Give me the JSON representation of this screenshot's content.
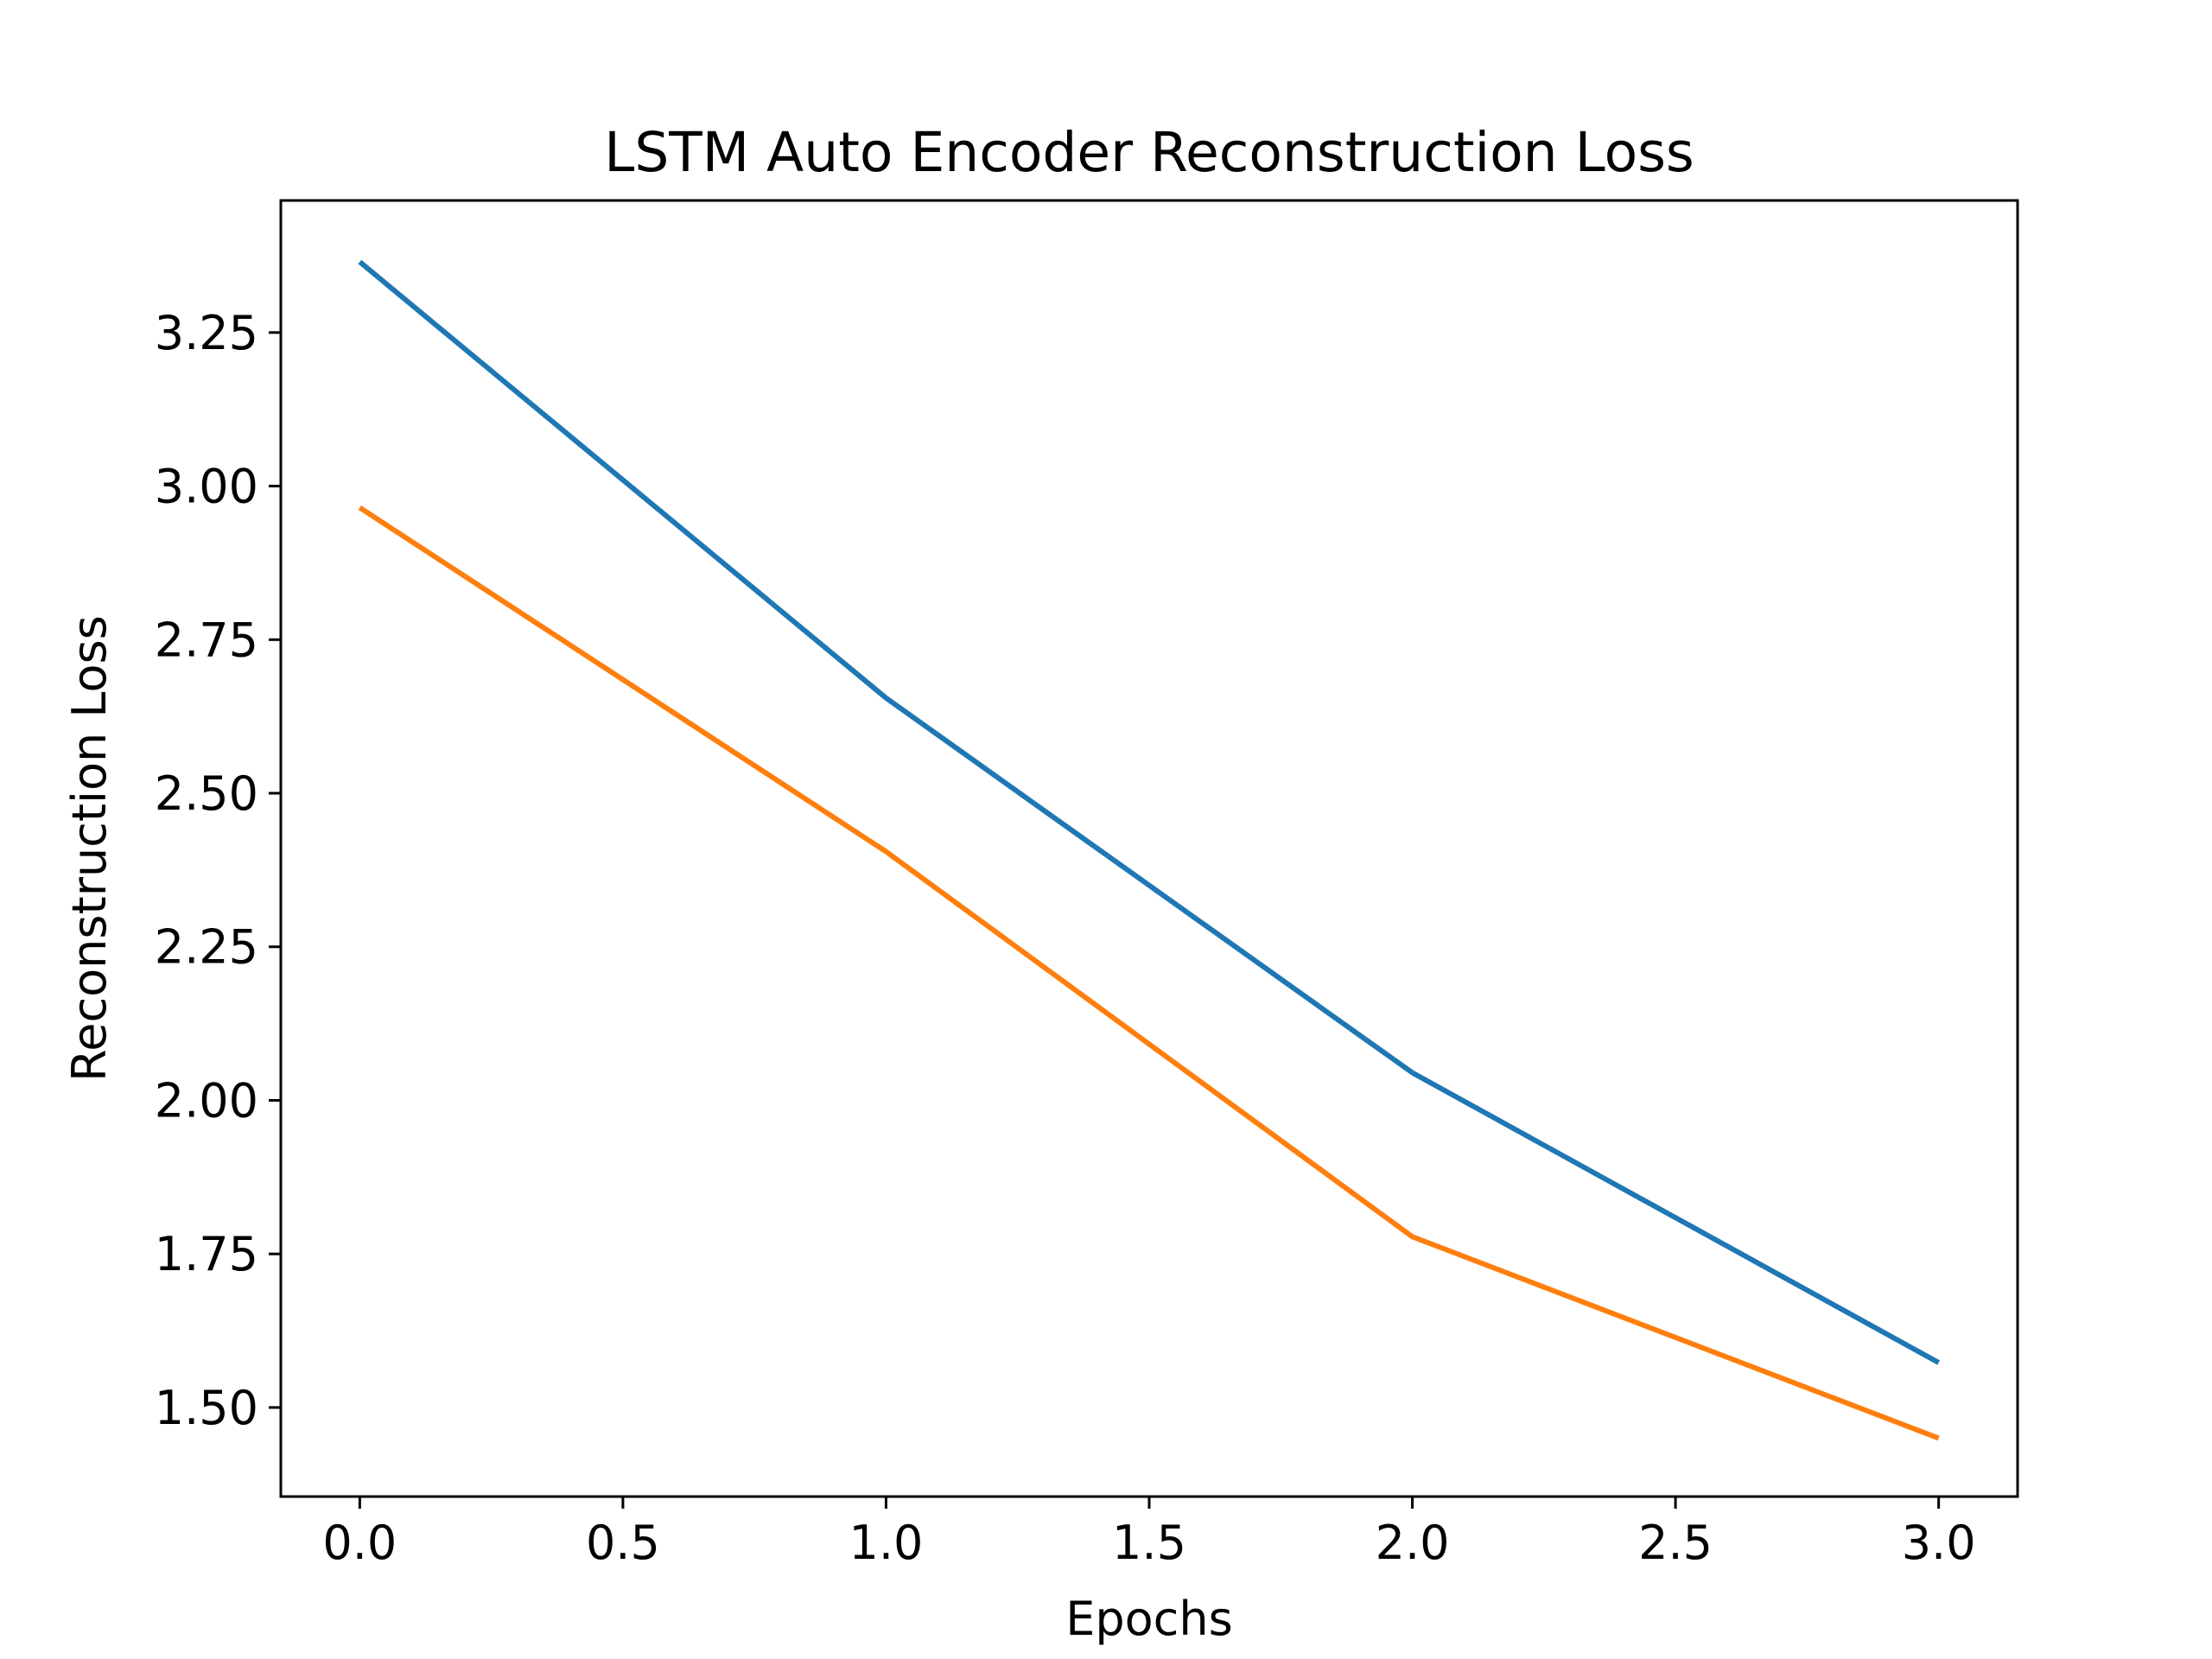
{
  "chart_data": {
    "type": "line",
    "title": "LSTM Auto Encoder Reconstruction Loss",
    "xlabel": "Epochs",
    "ylabel": "Reconstruction Loss",
    "x": [
      0,
      1,
      2,
      3
    ],
    "xlim": [
      -0.15,
      3.15
    ],
    "ylim": [
      1.355,
      3.465
    ],
    "xticks": [
      "0.0",
      "0.5",
      "1.0",
      "1.5",
      "2.0",
      "2.5",
      "3.0"
    ],
    "yticks": [
      "1.50",
      "1.75",
      "2.00",
      "2.25",
      "2.50",
      "2.75",
      "3.00",
      "3.25"
    ],
    "grid": false,
    "series": [
      {
        "values": [
          3.365,
          2.655,
          2.045,
          1.573
        ],
        "color": "#1f77b4"
      },
      {
        "values": [
          2.965,
          2.405,
          1.778,
          1.45
        ],
        "color": "#ff7f0e"
      }
    ]
  }
}
